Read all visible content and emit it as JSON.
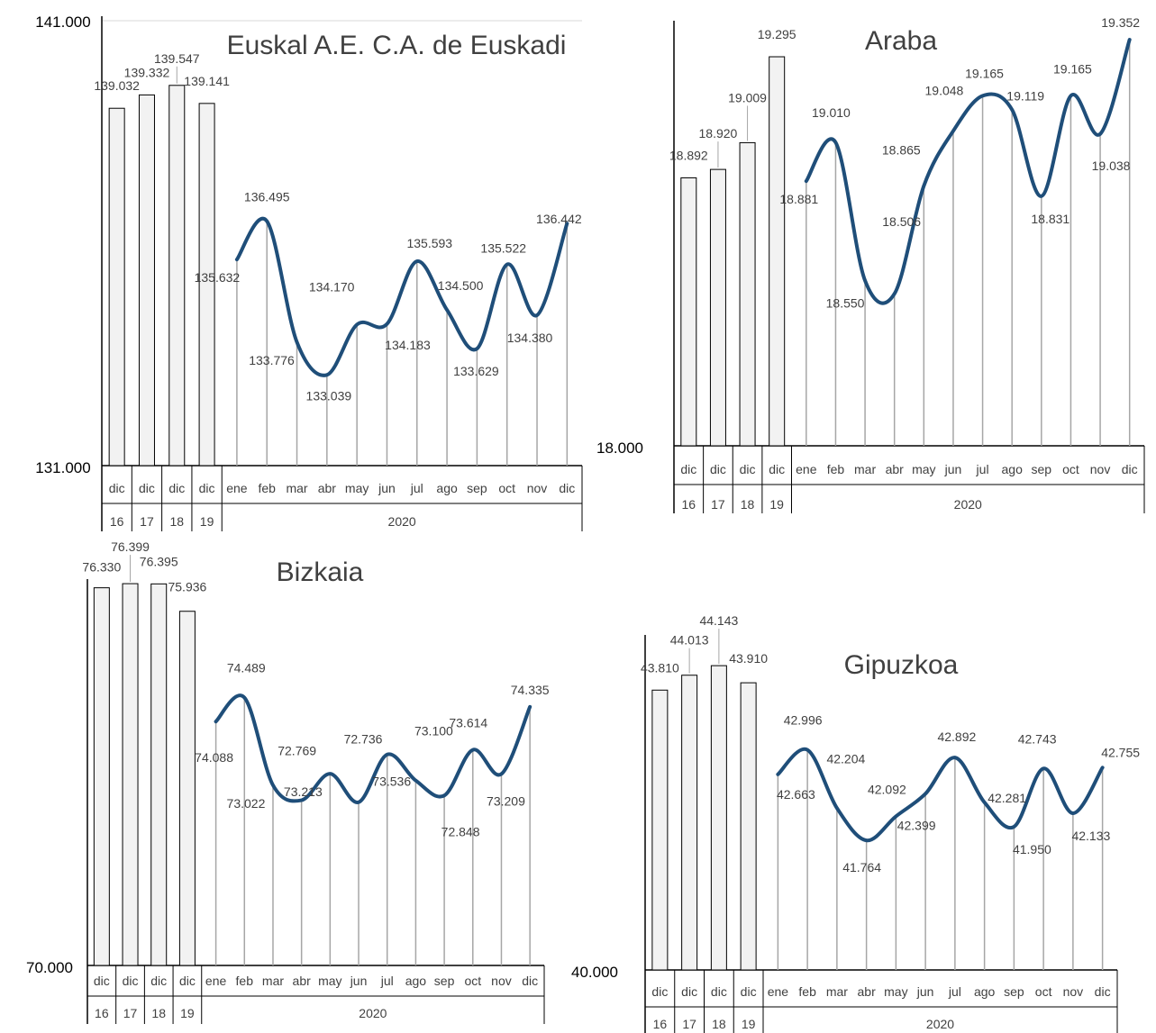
{
  "colors": {
    "bar_fill": "#f2f2f2",
    "bar_stroke": "#000000",
    "line": "#1f4e79",
    "drop_line": "#a6a6a6",
    "text": "#404040",
    "axis": "#000000"
  },
  "chart_data": [
    {
      "type": "bar",
      "title": "Euskal A.E. C.A. de Euskadi",
      "ylim": [
        131000,
        141000
      ],
      "y_min_label": "131.000",
      "y_max_label": "141.000",
      "bar_categories": [
        {
          "month": "dic",
          "year": "16"
        },
        {
          "month": "dic",
          "year": "17"
        },
        {
          "month": "dic",
          "year": "18"
        },
        {
          "month": "dic",
          "year": "19"
        }
      ],
      "bar_values": [
        139032,
        139332,
        139547,
        139141
      ],
      "bar_labels": [
        "139.032",
        "139.332",
        "139.547",
        "139.141"
      ],
      "line_year": "2020",
      "line_categories": [
        "ene",
        "feb",
        "mar",
        "abr",
        "may",
        "jun",
        "jul",
        "ago",
        "sep",
        "oct",
        "nov",
        "dic"
      ],
      "line_values": [
        135632,
        136495,
        133776,
        133039,
        134170,
        134183,
        135593,
        134500,
        133629,
        135522,
        134380,
        136442
      ],
      "line_labels": [
        "135.632",
        "136.495",
        "133.776",
        "133.039",
        "134.170",
        "134.183",
        "135.593",
        "134.500",
        "133.629",
        "135.522",
        "134.380",
        "136.442"
      ]
    },
    {
      "type": "bar",
      "title": "Araba",
      "ylim": [
        18000,
        19400
      ],
      "y_min_label": "18.000",
      "y_max_label": "",
      "bar_categories": [
        {
          "month": "dic",
          "year": "16"
        },
        {
          "month": "dic",
          "year": "17"
        },
        {
          "month": "dic",
          "year": "18"
        },
        {
          "month": "dic",
          "year": "19"
        }
      ],
      "bar_values": [
        18892,
        18920,
        19009,
        19295
      ],
      "bar_labels": [
        "18.892",
        "18.920",
        "19.009",
        "19.295"
      ],
      "line_year": "2020",
      "line_categories": [
        "ene",
        "feb",
        "mar",
        "abr",
        "may",
        "jun",
        "jul",
        "ago",
        "sep",
        "oct",
        "nov",
        "dic"
      ],
      "line_values": [
        18881,
        19010,
        18550,
        18506,
        18865,
        19048,
        19165,
        19119,
        18831,
        19165,
        19038,
        19352
      ],
      "line_labels": [
        "18.881",
        "19.010",
        "18.550",
        "18.506",
        "18.865",
        "19.048",
        "19.165",
        "19.119",
        "18.831",
        "19.165",
        "19.038",
        "19.352"
      ]
    },
    {
      "type": "bar",
      "title": "Bizkaia",
      "ylim": [
        70000,
        76400
      ],
      "y_min_label": "70.000",
      "y_max_label": "",
      "bar_categories": [
        {
          "month": "dic",
          "year": "16"
        },
        {
          "month": "dic",
          "year": "17"
        },
        {
          "month": "dic",
          "year": "18"
        },
        {
          "month": "dic",
          "year": "19"
        }
      ],
      "bar_values": [
        76330,
        76399,
        76395,
        75936
      ],
      "bar_labels": [
        "76.330",
        "76.399",
        "76.395",
        "75.936"
      ],
      "line_year": "2020",
      "line_categories": [
        "ene",
        "feb",
        "mar",
        "abr",
        "may",
        "jun",
        "jul",
        "ago",
        "sep",
        "oct",
        "nov",
        "dic"
      ],
      "line_values": [
        74088,
        74489,
        73022,
        72769,
        73213,
        72736,
        73536,
        73100,
        72848,
        73614,
        73209,
        74335
      ],
      "line_labels": [
        "74.088",
        "74.489",
        "73.022",
        "72.769",
        "73.213",
        "72.736",
        "73.536",
        "73.100",
        "72.848",
        "73.614",
        "73.209",
        "74.335"
      ]
    },
    {
      "type": "bar",
      "title": "Gipuzkoa",
      "ylim": [
        40000,
        44500
      ],
      "y_min_label": "40.000",
      "y_max_label": "",
      "bar_categories": [
        {
          "month": "dic",
          "year": "16"
        },
        {
          "month": "dic",
          "year": "17"
        },
        {
          "month": "dic",
          "year": "18"
        },
        {
          "month": "dic",
          "year": "19"
        }
      ],
      "bar_values": [
        43810,
        44013,
        44143,
        43910
      ],
      "bar_labels": [
        "43.810",
        "44.013",
        "44.143",
        "43.910"
      ],
      "line_year": "2020",
      "line_categories": [
        "ene",
        "feb",
        "mar",
        "abr",
        "may",
        "jun",
        "jul",
        "ago",
        "sep",
        "oct",
        "nov",
        "dic"
      ],
      "line_values": [
        42663,
        42996,
        42204,
        41764,
        42092,
        42399,
        42892,
        42281,
        41950,
        42743,
        42133,
        42755
      ],
      "line_labels": [
        "42.663",
        "42.996",
        "42.204",
        "41.764",
        "42.092",
        "42.399",
        "42.892",
        "42.281",
        "41.950",
        "42.743",
        "42.133",
        "42.755"
      ]
    }
  ]
}
